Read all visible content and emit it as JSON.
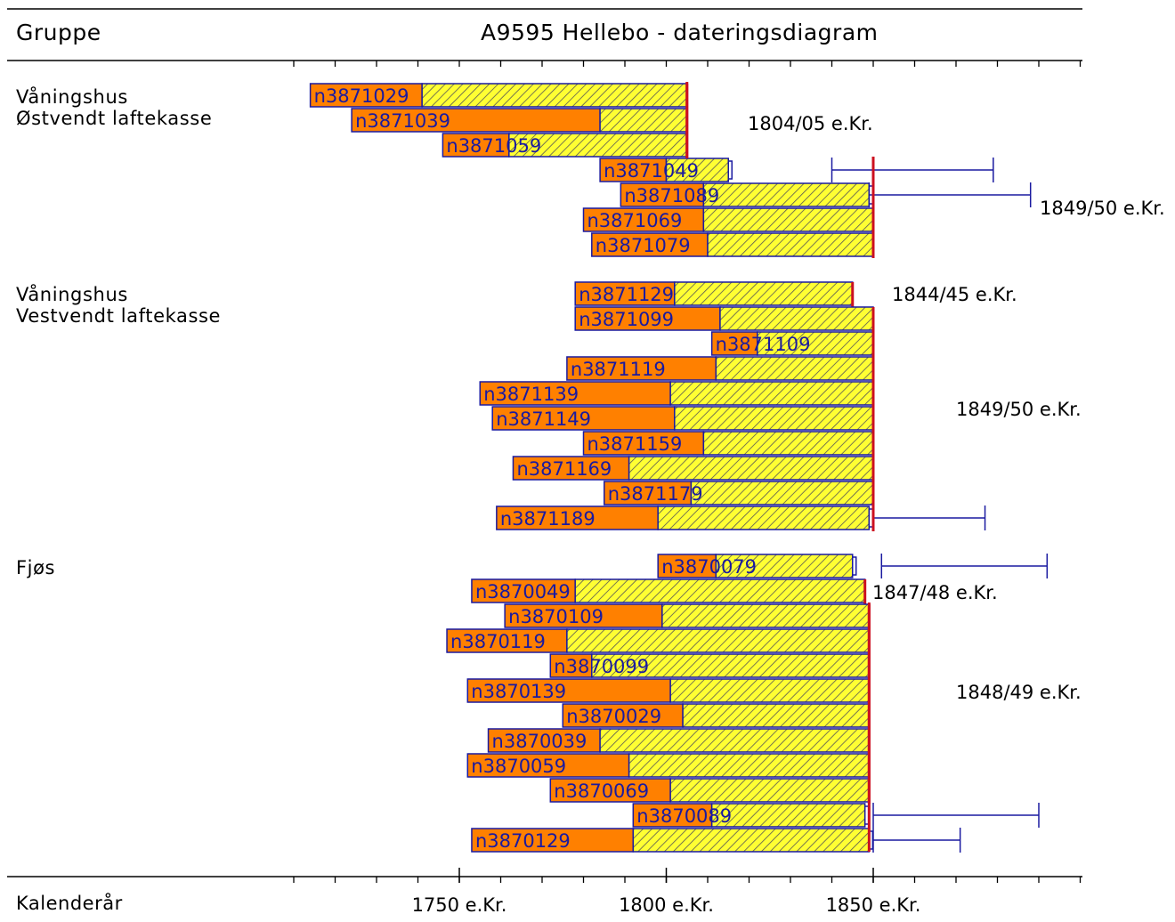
{
  "header": {
    "group_col_label": "Gruppe",
    "title": "A9595 Hellebo - dateringsdiagram"
  },
  "footer": {
    "axis_label": "Kalenderår"
  },
  "colors": {
    "heartwood": "#ff8000",
    "sapwood": "#ffff33",
    "hatch": "#555555",
    "outline": "#1a1aa0",
    "felling_line": "#cc1020",
    "error_bar": "#1a1aa0"
  },
  "chart_data": {
    "type": "bar",
    "subtype": "dendrochronological dating diagram (horizontal floating bars)",
    "title": "A9595 Hellebo - dateringsdiagram",
    "xlabel": "Kalenderår",
    "x_ticks": [
      {
        "value": 1750,
        "label": "1750 e.Kr."
      },
      {
        "value": 1800,
        "label": "1800 e.Kr."
      },
      {
        "value": 1850,
        "label": "1850 e.Kr."
      }
    ],
    "xlim": [
      1700,
      1900
    ],
    "minor_tick_step": 10,
    "groups": [
      {
        "name": "Våningshus\nØstvendt laftekasse",
        "samples": [
          {
            "id": "n3871029",
            "start": 1714,
            "sapwood_start": 1741,
            "end": 1805,
            "felling": true
          },
          {
            "id": "n3871039",
            "start": 1724,
            "sapwood_start": 1784,
            "end": 1805,
            "felling": true
          },
          {
            "id": "n3871059",
            "start": 1746,
            "sapwood_start": 1762,
            "end": 1805,
            "felling": true
          },
          {
            "id": "n3871049",
            "start": 1784,
            "sapwood_start": 1800,
            "end": 1815,
            "error_bar": [
              1840,
              1879
            ]
          },
          {
            "id": "n3871089",
            "start": 1789,
            "sapwood_start": 1809,
            "end": 1849,
            "error_bar": [
              1849,
              1888
            ]
          },
          {
            "id": "n3871069",
            "start": 1780,
            "sapwood_start": 1809,
            "end": 1850,
            "felling": true
          },
          {
            "id": "n3871079",
            "start": 1782,
            "sapwood_start": 1810,
            "end": 1850,
            "felling": true
          }
        ],
        "date_labels": [
          {
            "text": "1804/05 e.Kr.",
            "year": 1805
          },
          {
            "text": "1849/50 e.Kr.",
            "year": 1850
          }
        ]
      },
      {
        "name": "Våningshus\nVestvendt laftekasse",
        "samples": [
          {
            "id": "n3871129",
            "start": 1778,
            "sapwood_start": 1802,
            "end": 1845,
            "felling": true
          },
          {
            "id": "n3871099",
            "start": 1778,
            "sapwood_start": 1813,
            "end": 1850,
            "felling": true
          },
          {
            "id": "n3871109",
            "start": 1811,
            "sapwood_start": 1822,
            "end": 1850,
            "felling": true
          },
          {
            "id": "n3871119",
            "start": 1776,
            "sapwood_start": 1812,
            "end": 1850,
            "felling": true
          },
          {
            "id": "n3871139",
            "start": 1755,
            "sapwood_start": 1801,
            "end": 1850,
            "felling": true
          },
          {
            "id": "n3871149",
            "start": 1758,
            "sapwood_start": 1802,
            "end": 1850,
            "felling": true
          },
          {
            "id": "n3871159",
            "start": 1780,
            "sapwood_start": 1809,
            "end": 1850,
            "felling": true
          },
          {
            "id": "n3871169",
            "start": 1763,
            "sapwood_start": 1791,
            "end": 1850,
            "felling": true
          },
          {
            "id": "n3871179",
            "start": 1785,
            "sapwood_start": 1806,
            "end": 1850,
            "felling": true
          },
          {
            "id": "n3871189",
            "start": 1759,
            "sapwood_start": 1798,
            "end": 1849,
            "error_bar": [
              1850,
              1877
            ]
          }
        ],
        "date_labels": [
          {
            "text": "1844/45 e.Kr.",
            "year": 1845
          },
          {
            "text": "1849/50 e.Kr.",
            "year": 1850
          }
        ]
      },
      {
        "name": "Fjøs",
        "samples": [
          {
            "id": "n3870079",
            "start": 1798,
            "sapwood_start": 1812,
            "end": 1845,
            "error_bar": [
              1852,
              1892
            ]
          },
          {
            "id": "n3870049",
            "start": 1753,
            "sapwood_start": 1778,
            "end": 1848,
            "felling": true
          },
          {
            "id": "n3870109",
            "start": 1761,
            "sapwood_start": 1799,
            "end": 1849,
            "felling": true
          },
          {
            "id": "n3870119",
            "start": 1747,
            "sapwood_start": 1776,
            "end": 1849,
            "felling": true
          },
          {
            "id": "n3870099",
            "start": 1772,
            "sapwood_start": 1782,
            "end": 1849,
            "felling": true
          },
          {
            "id": "n3870139",
            "start": 1752,
            "sapwood_start": 1801,
            "end": 1849,
            "felling": true
          },
          {
            "id": "n3870029",
            "start": 1775,
            "sapwood_start": 1804,
            "end": 1849,
            "felling": true
          },
          {
            "id": "n3870039",
            "start": 1757,
            "sapwood_start": 1784,
            "end": 1849,
            "felling": true
          },
          {
            "id": "n3870059",
            "start": 1752,
            "sapwood_start": 1791,
            "end": 1849,
            "felling": true
          },
          {
            "id": "n3870069",
            "start": 1772,
            "sapwood_start": 1801,
            "end": 1849,
            "felling": true
          },
          {
            "id": "n3870089",
            "start": 1792,
            "sapwood_start": 1811,
            "end": 1848,
            "error_bar": [
              1850,
              1890
            ]
          },
          {
            "id": "n3870129",
            "start": 1753,
            "sapwood_start": 1792,
            "end": 1849,
            "error_bar": [
              1850,
              1871
            ]
          }
        ],
        "date_labels": [
          {
            "text": "1847/48 e.Kr.",
            "year": 1848
          },
          {
            "text": "1848/49 e.Kr.",
            "year": 1849
          }
        ]
      }
    ]
  }
}
